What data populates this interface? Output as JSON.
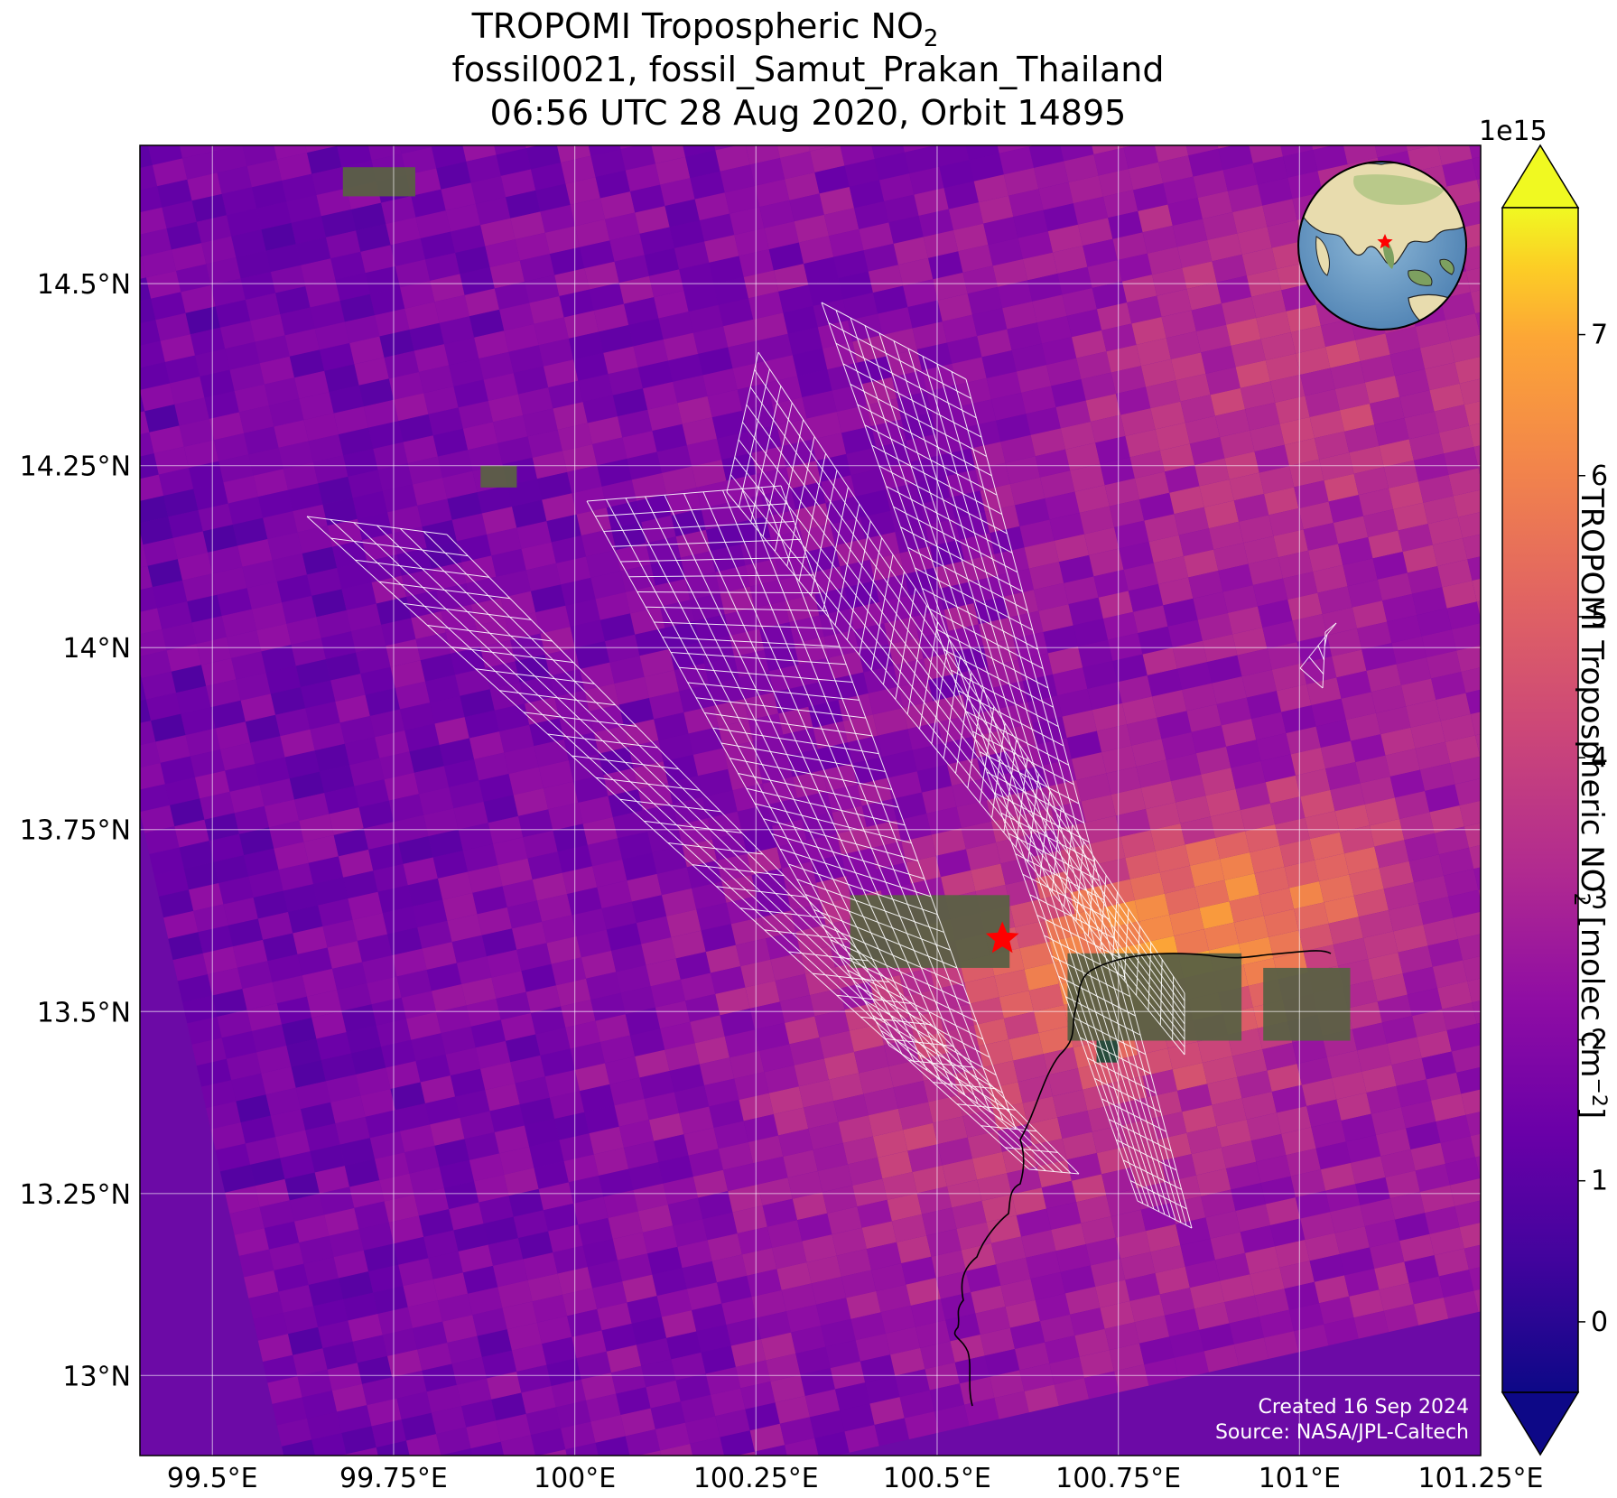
{
  "title": {
    "line1_prefix": "TROPOMI Tropospheric NO",
    "line1_sub": "2",
    "line2": "fossil0021, fossil_Samut_Prakan_Thailand",
    "line3": "06:56 UTC 28 Aug 2020, Orbit 14895"
  },
  "map": {
    "lon_range": [
      99.4,
      101.25
    ],
    "lat_range": [
      12.89,
      14.69
    ],
    "lon_ticks": [
      {
        "value": 99.5,
        "label": "99.5°E"
      },
      {
        "value": 99.75,
        "label": "99.75°E"
      },
      {
        "value": 100.0,
        "label": "100°E"
      },
      {
        "value": 100.25,
        "label": "100.25°E"
      },
      {
        "value": 100.5,
        "label": "100.5°E"
      },
      {
        "value": 100.75,
        "label": "100.75°E"
      },
      {
        "value": 101.0,
        "label": "101°E"
      },
      {
        "value": 101.25,
        "label": "101.25°E"
      }
    ],
    "lat_ticks": [
      {
        "value": 14.5,
        "label": "14.5°N"
      },
      {
        "value": 14.25,
        "label": "14.25°N"
      },
      {
        "value": 14.0,
        "label": "14°N"
      },
      {
        "value": 13.75,
        "label": "13.75°N"
      },
      {
        "value": 13.5,
        "label": "13.5°N"
      },
      {
        "value": 13.25,
        "label": "13.25°N"
      },
      {
        "value": 13.0,
        "label": "13°N"
      }
    ],
    "target_site": {
      "lon": 100.59,
      "lat": 13.6,
      "marker": "red-star-icon"
    },
    "colormap": "plasma",
    "grid": true
  },
  "colorbar": {
    "label_prefix": "TROPOMI Tropospheric NO",
    "label_sub": "2",
    "label_units_prefix": " [molec cm",
    "label_units_sup": "−2",
    "label_units_suffix": "]",
    "multiplier": "1e15",
    "range": [
      -0.5,
      7.9
    ],
    "ticks": [
      "0",
      "1",
      "2",
      "3",
      "4",
      "5",
      "6",
      "7"
    ],
    "extend": "both"
  },
  "credits": {
    "created": "Created 16 Sep 2024",
    "source": "Source: NASA/JPL-Caltech"
  },
  "inset_globe": {
    "marker": "red-star-icon",
    "legend_position": "top-right"
  }
}
